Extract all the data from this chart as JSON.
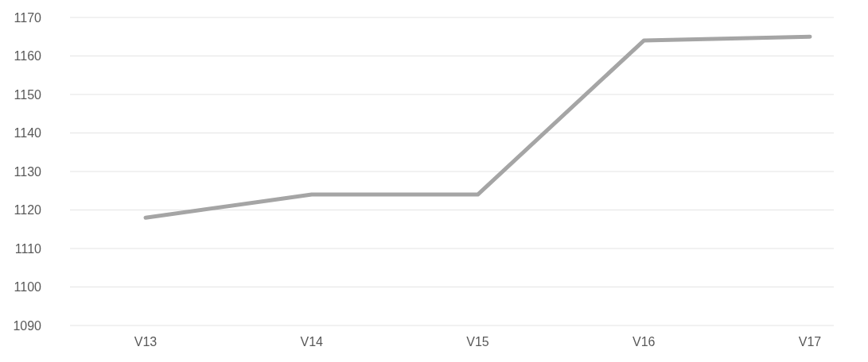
{
  "chart_data": {
    "type": "line",
    "categories": [
      "V13",
      "V14",
      "V15",
      "V16",
      "V17"
    ],
    "series": [
      {
        "color": "#a5a5a5",
        "values": [
          1118,
          1124,
          1124,
          1164,
          1165
        ]
      }
    ],
    "ylim": [
      1090,
      1170
    ],
    "yticks": [
      1090,
      1100,
      1110,
      1120,
      1130,
      1140,
      1150,
      1160,
      1170
    ],
    "grid": "y",
    "marker": "none",
    "line_style": "solid"
  }
}
